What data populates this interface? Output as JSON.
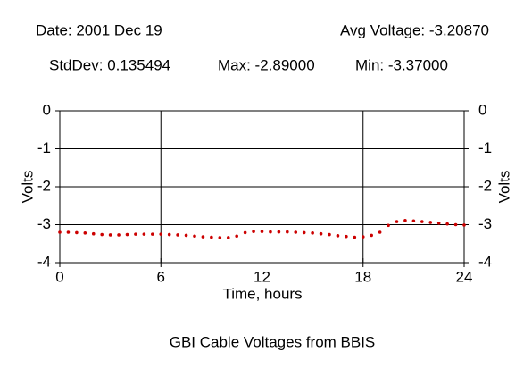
{
  "chart_data": {
    "type": "line",
    "title": "GBI Cable Voltages from BBIS",
    "header": {
      "date": "Date: 2001 Dec 19",
      "avg": "Avg Voltage: -3.20870",
      "stddev": "StdDev: 0.135494",
      "max": "Max: -2.89000",
      "min": "Min: -3.37000"
    },
    "xlabel": "Time, hours",
    "ylabel": "Volts",
    "y2label": "Volts",
    "x": [
      0,
      0.5,
      1,
      1.5,
      2,
      2.5,
      3,
      3.5,
      4,
      4.5,
      5,
      5.5,
      6,
      6.5,
      7,
      7.5,
      8,
      8.5,
      9,
      9.5,
      10,
      10.5,
      11,
      11.5,
      12,
      12.5,
      13,
      13.5,
      14,
      14.5,
      15,
      15.5,
      16,
      16.5,
      17,
      17.5,
      18,
      18.5,
      19,
      19.5,
      20,
      20.5,
      21,
      21.5,
      22,
      22.5,
      23,
      23.5,
      24
    ],
    "series": [
      {
        "color": "#cc0000",
        "values": [
          -3.2,
          -3.2,
          -3.21,
          -3.22,
          -3.24,
          -3.26,
          -3.27,
          -3.27,
          -3.26,
          -3.25,
          -3.25,
          -3.25,
          -3.25,
          -3.26,
          -3.27,
          -3.28,
          -3.3,
          -3.32,
          -3.33,
          -3.34,
          -3.34,
          -3.3,
          -3.21,
          -3.18,
          -3.18,
          -3.19,
          -3.19,
          -3.19,
          -3.2,
          -3.21,
          -3.22,
          -3.24,
          -3.26,
          -3.29,
          -3.31,
          -3.33,
          -3.32,
          -3.28,
          -3.2,
          -3.02,
          -2.92,
          -2.89,
          -2.9,
          -2.92,
          -2.94,
          -2.96,
          -2.98,
          -3.0,
          -3.01
        ]
      }
    ],
    "xlim": [
      0,
      24
    ],
    "xticks": [
      0,
      6,
      12,
      18,
      24
    ],
    "ylim": [
      -4,
      0
    ],
    "yticks": [
      0,
      -1,
      -2,
      -3,
      -4
    ],
    "y2lim": [
      -4,
      0
    ],
    "y2ticks": [
      0,
      -1,
      -2,
      -3,
      -4
    ],
    "grid": true
  }
}
